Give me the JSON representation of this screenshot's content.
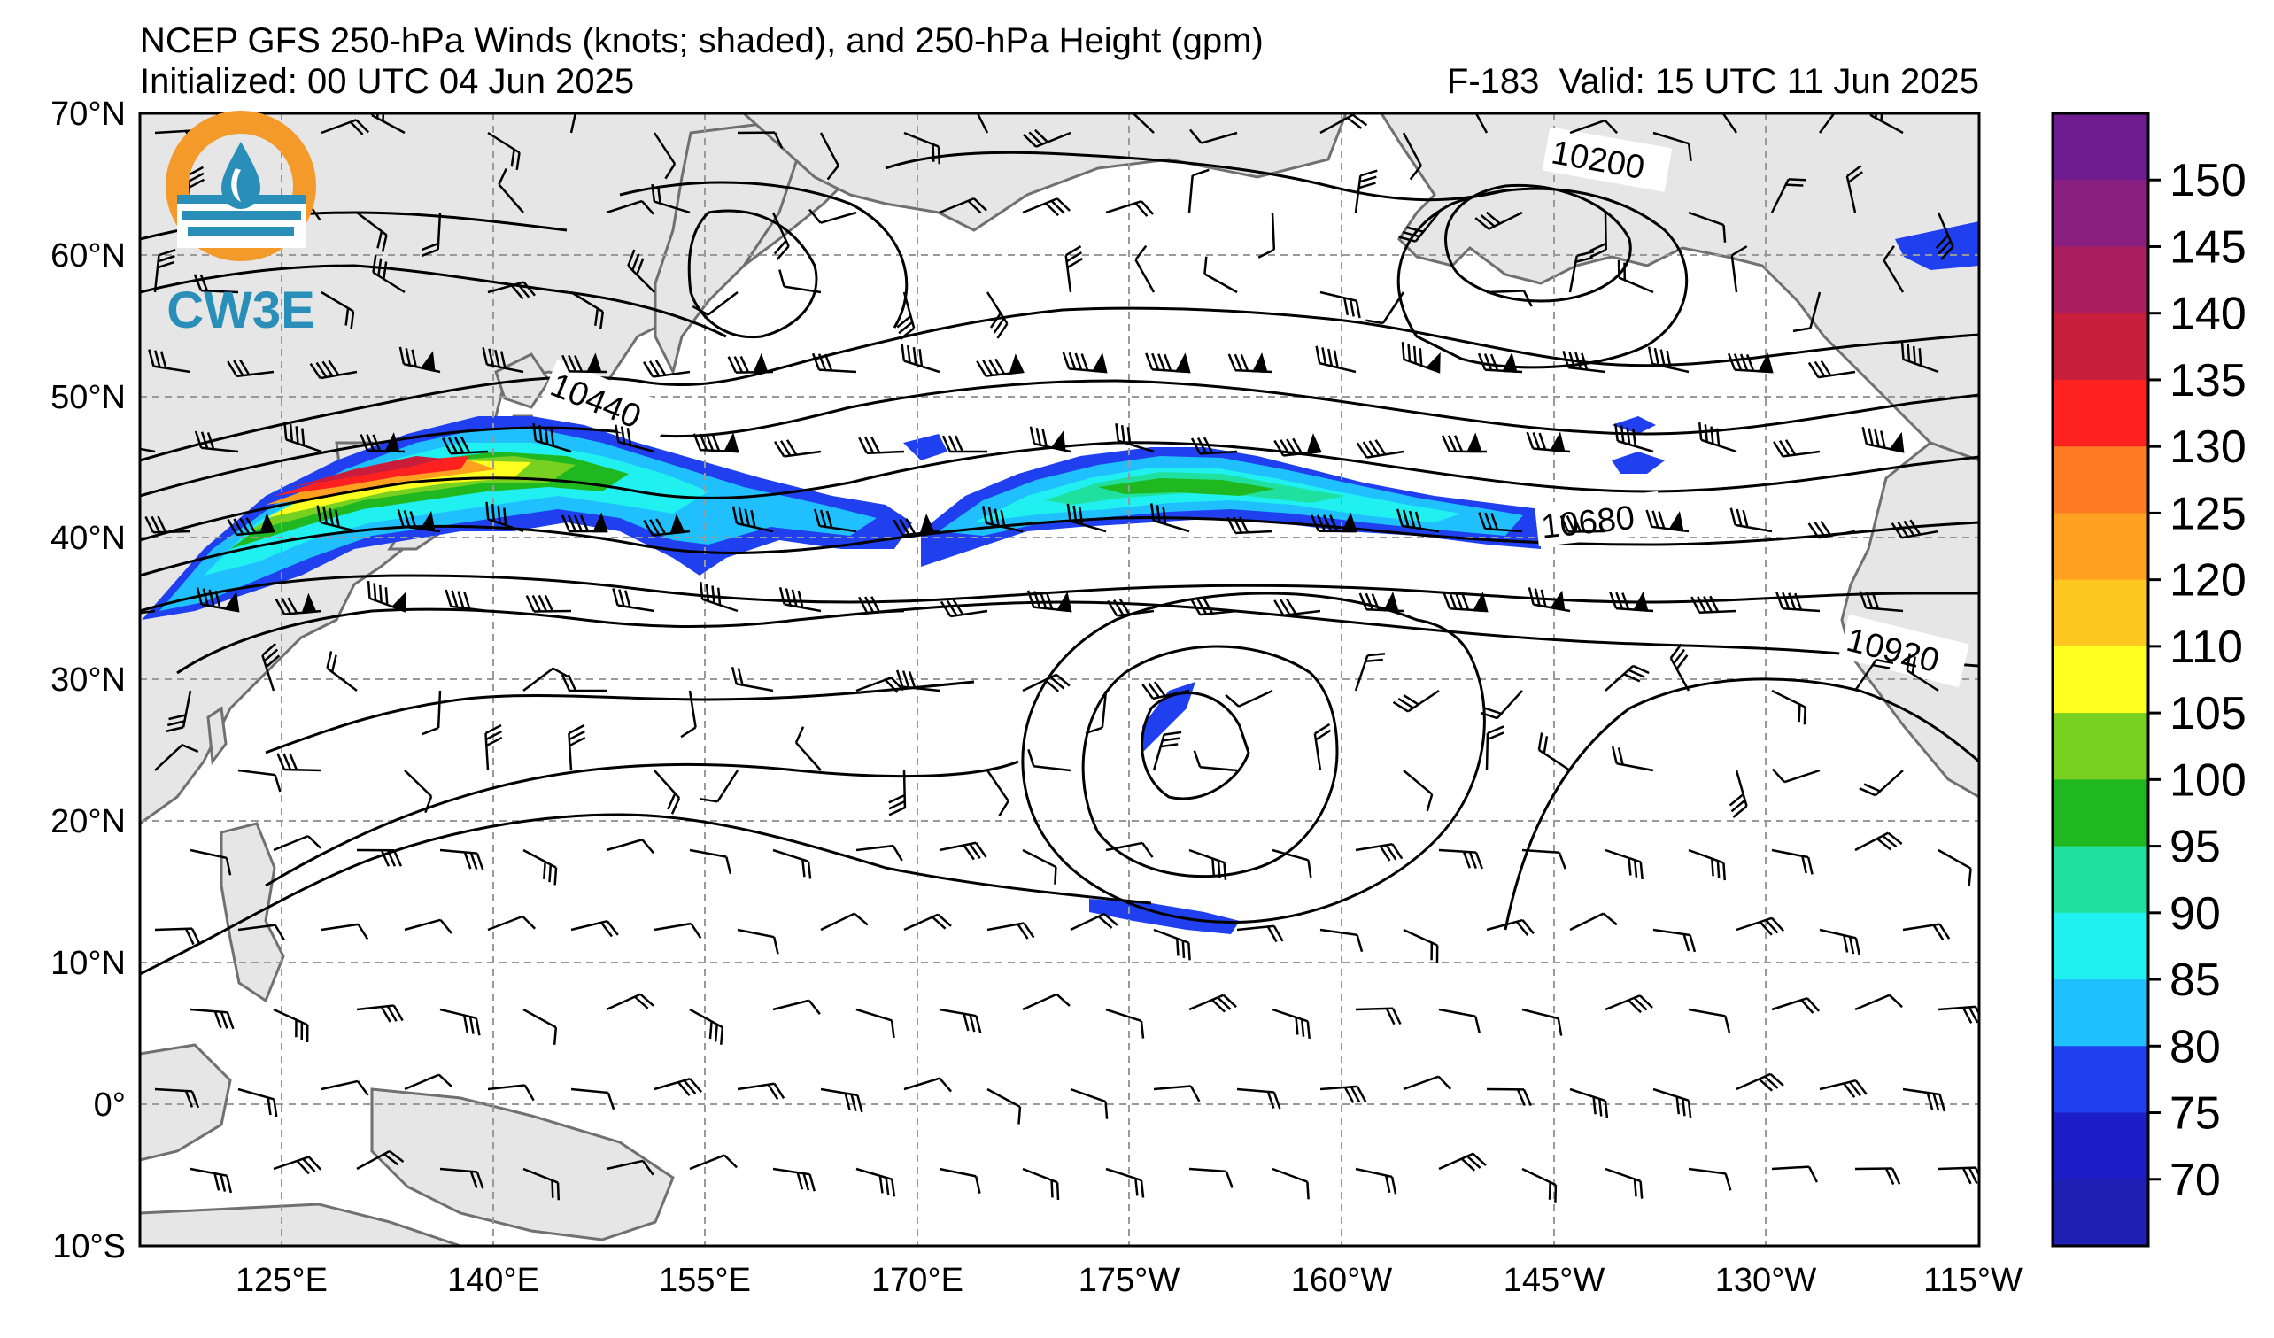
{
  "header": {
    "title": "NCEP GFS 250-hPa Winds (knots; shaded), and 250-hPa Height (gpm)",
    "initialized": "Initialized: 00 UTC 04 Jun 2025",
    "forecast": "F-183",
    "valid": "Valid: 15 UTC 11 Jun 2025"
  },
  "logo": {
    "text": "CW3E"
  },
  "axes": {
    "lat_labels": [
      "70°N",
      "60°N",
      "50°N",
      "40°N",
      "30°N",
      "20°N",
      "10°N",
      "0°",
      "10°S"
    ],
    "lon_labels": [
      "125°E",
      "140°E",
      "155°E",
      "170°E",
      "175°W",
      "160°W",
      "145°W",
      "130°W",
      "115°W"
    ],
    "lon_range": [
      "115°E",
      "115°W"
    ],
    "lat_range": [
      "10°S",
      "70°N"
    ],
    "grid": "dashed"
  },
  "colorbar": {
    "labels": [
      "150",
      "145",
      "140",
      "135",
      "130",
      "125",
      "120",
      "110",
      "105",
      "100",
      "95",
      "90",
      "85",
      "80",
      "75",
      "70"
    ],
    "colors": [
      "#6e1c8f",
      "#8a1f80",
      "#a81e5e",
      "#c81e3c",
      "#ff2020",
      "#ff7a20",
      "#ffa020",
      "#ffc820",
      "#ffff20",
      "#78d020",
      "#20b820",
      "#20e0a0",
      "#20f0f0",
      "#20c0ff",
      "#2040f0",
      "#1e1ec8",
      "#2020b4"
    ],
    "units": "knots"
  },
  "contours": {
    "labels": [
      "10200",
      "10440",
      "10680",
      "10920"
    ],
    "units": "gpm"
  },
  "colors": {
    "land": "#e6e6e6",
    "coast": "#707070",
    "grid": "#999999"
  }
}
